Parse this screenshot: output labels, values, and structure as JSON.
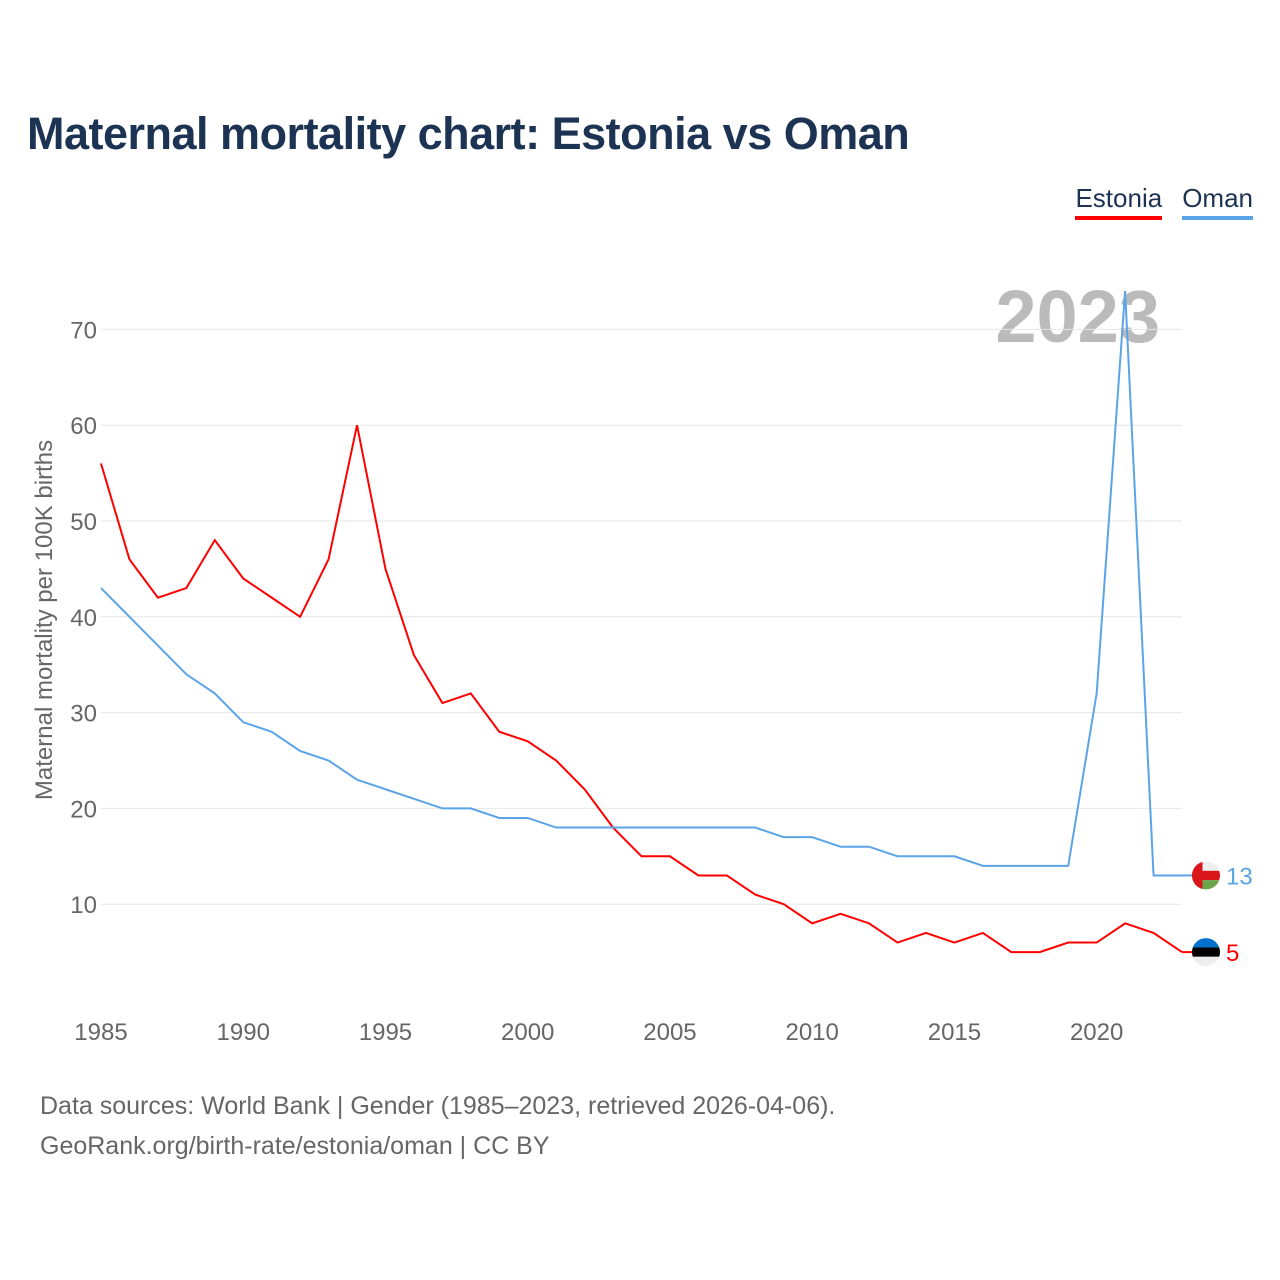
{
  "chart_data": {
    "type": "line",
    "title": "Maternal mortality chart: Estonia vs Oman",
    "xlabel": "",
    "ylabel": "Maternal mortality per 100K births",
    "xlim": [
      1985,
      2023
    ],
    "ylim": [
      0,
      75
    ],
    "x_ticks": [
      "1985",
      "1990",
      "1995",
      "2000",
      "2005",
      "2010",
      "2015",
      "2020"
    ],
    "y_ticks": [
      "10",
      "20",
      "30",
      "40",
      "50",
      "60",
      "70"
    ],
    "grid": true,
    "legend_position": "top-right",
    "year_label": "2023",
    "x": [
      1985,
      1986,
      1987,
      1988,
      1989,
      1990,
      1991,
      1992,
      1993,
      1994,
      1995,
      1996,
      1997,
      1998,
      1999,
      2000,
      2001,
      2002,
      2003,
      2004,
      2005,
      2006,
      2007,
      2008,
      2009,
      2010,
      2011,
      2012,
      2013,
      2014,
      2015,
      2016,
      2017,
      2018,
      2019,
      2020,
      2021,
      2022,
      2023
    ],
    "series": [
      {
        "name": "Estonia",
        "color": "#ff0000",
        "end_label": "5",
        "values": [
          56,
          46,
          42,
          43,
          48,
          44,
          42,
          40,
          46,
          60,
          45,
          36,
          31,
          32,
          28,
          27,
          25,
          22,
          18,
          15,
          15,
          13,
          13,
          11,
          10,
          8,
          9,
          8,
          6,
          7,
          6,
          7,
          5,
          5,
          6,
          6,
          8,
          7,
          5
        ]
      },
      {
        "name": "Oman",
        "color": "#5ba4e8",
        "end_label": "13",
        "values": [
          43,
          40,
          37,
          34,
          32,
          29,
          28,
          26,
          25,
          23,
          22,
          21,
          20,
          20,
          19,
          19,
          18,
          18,
          18,
          18,
          18,
          18,
          18,
          18,
          17,
          17,
          16,
          16,
          15,
          15,
          15,
          14,
          14,
          14,
          14,
          32,
          74,
          13,
          13
        ]
      }
    ]
  },
  "footer": {
    "line1": "Data sources: World Bank | Gender (1985–2023, retrieved 2026-04-06).",
    "line2": "GeoRank.org/birth-rate/estonia/oman | CC BY"
  }
}
